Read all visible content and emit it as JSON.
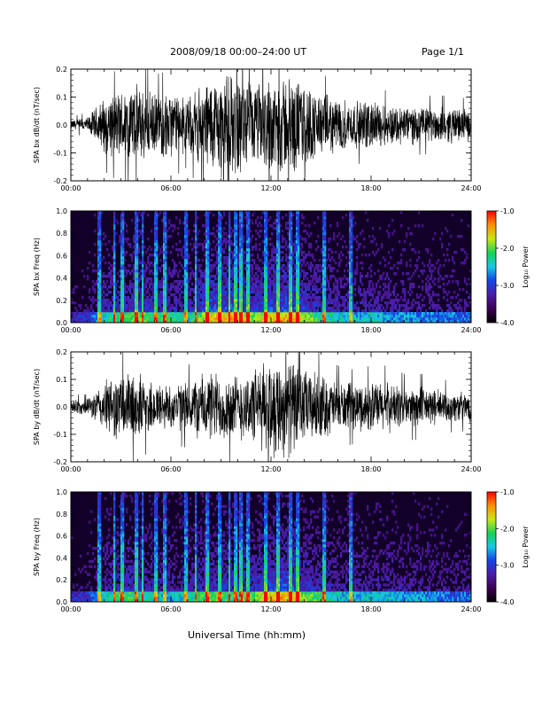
{
  "header": {
    "date_title": "2008/09/18   00:00–24:00 UT",
    "page": "Page 1/1"
  },
  "x_axis_label": "Universal Time (hh:mm)",
  "colorbar": {
    "label": "Log₁₀ Power",
    "ticks": [
      "-1.0",
      "-2.0",
      "-3.0",
      "-4.0"
    ],
    "range": [
      -4.0,
      -1.0
    ]
  },
  "colors": {
    "background": "#ffffff",
    "trace": "#000000",
    "spectrogram_base": "#120028"
  },
  "chart_data": [
    {
      "type": "line",
      "ylabel": "SPA bx dB/dt (nT/sec)",
      "xlim": [
        0,
        24
      ],
      "ylim": [
        -0.2,
        0.2
      ],
      "x_ticks": [
        "00:00",
        "06:00",
        "12:00",
        "18:00",
        "24:00"
      ],
      "y_ticks": [
        "-0.2",
        "-0.1",
        "0.0",
        "0.1",
        "0.2"
      ],
      "envelope_hours": [
        0,
        1,
        2,
        3,
        4,
        5,
        6,
        7,
        8,
        9,
        10,
        11,
        12,
        13,
        14,
        15,
        16,
        17,
        18,
        19,
        20,
        21,
        22,
        23,
        24
      ],
      "envelope_amplitude": [
        0.02,
        0.03,
        0.11,
        0.14,
        0.16,
        0.12,
        0.13,
        0.1,
        0.18,
        0.2,
        0.2,
        0.16,
        0.2,
        0.2,
        0.17,
        0.12,
        0.11,
        0.09,
        0.1,
        0.08,
        0.08,
        0.07,
        0.07,
        0.07,
        0.06
      ]
    },
    {
      "type": "heatmap",
      "ylabel": "SPA bx Freq (Hz)",
      "xlim": [
        0,
        24
      ],
      "ylim": [
        0.0,
        1.0
      ],
      "x_ticks": [
        "00:00",
        "06:00",
        "12:00",
        "18:00",
        "24:00"
      ],
      "y_ticks": [
        "0.0",
        "0.2",
        "0.4",
        "0.6",
        "0.8",
        "1.0"
      ],
      "z_range_log10": [
        -4.0,
        -1.0
      ]
    },
    {
      "type": "line",
      "ylabel": "SPA by dB/dt (nT/sec)",
      "xlim": [
        0,
        24
      ],
      "ylim": [
        -0.2,
        0.2
      ],
      "x_ticks": [
        "00:00",
        "06:00",
        "12:00",
        "18:00",
        "24:00"
      ],
      "y_ticks": [
        "-0.2",
        "-0.1",
        "0.0",
        "0.1",
        "0.2"
      ],
      "envelope_hours": [
        0,
        1,
        2,
        3,
        4,
        5,
        6,
        7,
        8,
        9,
        10,
        11,
        12,
        13,
        14,
        15,
        16,
        17,
        18,
        19,
        20,
        21,
        22,
        23,
        24
      ],
      "envelope_amplitude": [
        0.03,
        0.03,
        0.1,
        0.14,
        0.13,
        0.1,
        0.09,
        0.1,
        0.14,
        0.14,
        0.13,
        0.15,
        0.2,
        0.2,
        0.15,
        0.13,
        0.1,
        0.09,
        0.1,
        0.1,
        0.08,
        0.08,
        0.07,
        0.06,
        0.06
      ]
    },
    {
      "type": "heatmap",
      "ylabel": "SPA by Freq (Hz)",
      "xlim": [
        0,
        24
      ],
      "ylim": [
        0.0,
        1.0
      ],
      "x_ticks": [
        "00:00",
        "06:00",
        "12:00",
        "18:00",
        "24:00"
      ],
      "y_ticks": [
        "0.0",
        "0.2",
        "0.4",
        "0.6",
        "0.8",
        "1.0"
      ],
      "z_range_log10": [
        -4.0,
        -1.0
      ]
    }
  ]
}
